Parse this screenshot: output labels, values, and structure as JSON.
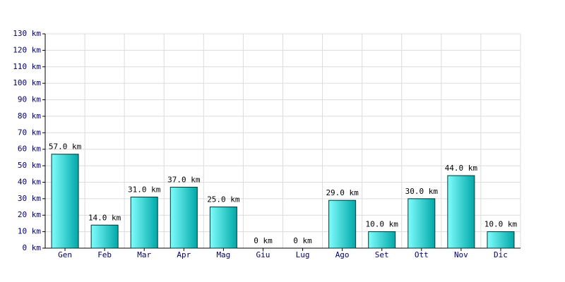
{
  "chart_data": {
    "type": "bar",
    "categories": [
      "Gen",
      "Feb",
      "Mar",
      "Apr",
      "Mag",
      "Giu",
      "Lug",
      "Ago",
      "Set",
      "Ott",
      "Nov",
      "Dic"
    ],
    "values": [
      57,
      14,
      31,
      37,
      25,
      0,
      0,
      29,
      10,
      30,
      44,
      10
    ],
    "value_labels": [
      "57.0 km",
      "14.0 km",
      "31.0 km",
      "37.0 km",
      "25.0 km",
      "0 km",
      "0 km",
      "29.0 km",
      "10.0 km",
      "30.0 km",
      "44.0 km",
      "10.0 km"
    ],
    "color": "#00a8a8",
    "ylim": [
      0,
      130
    ],
    "yticks": [
      {
        "value": 0,
        "label": "0 km"
      },
      {
        "value": 10,
        "label": "10 km"
      },
      {
        "value": 20,
        "label": "20 km"
      },
      {
        "value": 30,
        "label": "30 km"
      },
      {
        "value": 40,
        "label": "40 km"
      },
      {
        "value": 50,
        "label": "50 km"
      },
      {
        "value": 60,
        "label": "60 km"
      },
      {
        "value": 70,
        "label": "70 km"
      },
      {
        "value": 80,
        "label": "80 km"
      },
      {
        "value": 90,
        "label": "90 km"
      },
      {
        "value": 100,
        "label": "100 km"
      },
      {
        "value": 110,
        "label": "110 km"
      },
      {
        "value": 120,
        "label": "120 km"
      },
      {
        "value": 130,
        "label": "130 km"
      }
    ],
    "grid": true
  }
}
